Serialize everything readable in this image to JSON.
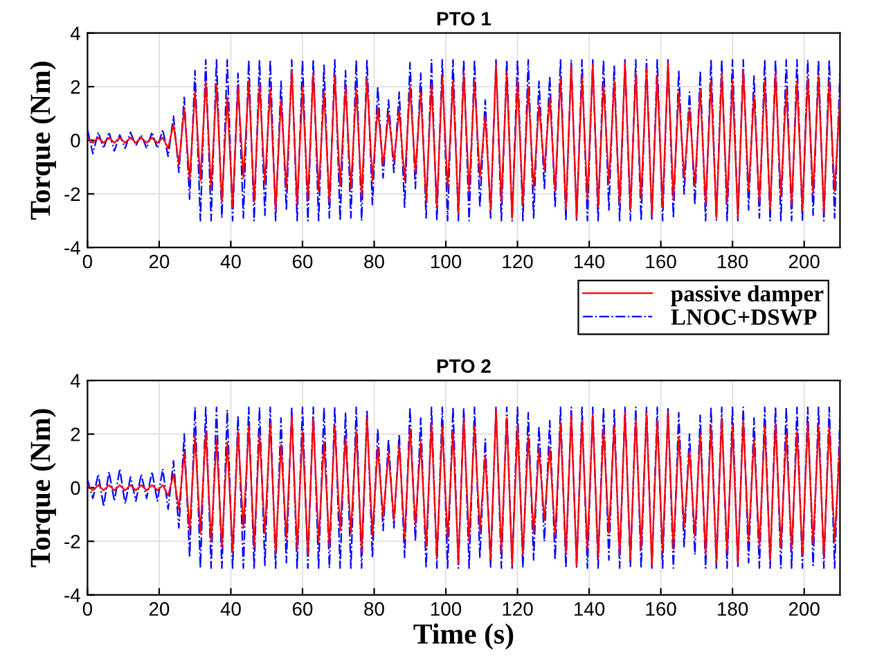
{
  "chart_data": [
    {
      "type": "line",
      "title": "PTO 1",
      "ylabel": "Torque (Nm)",
      "xlim": [
        0,
        210
      ],
      "xticks": [
        0,
        20,
        40,
        60,
        80,
        100,
        120,
        140,
        160,
        180,
        200
      ],
      "ylim": [
        -4,
        4
      ],
      "yticks": [
        -4,
        -2,
        0,
        2,
        4
      ],
      "grid": true,
      "legend": "bottom right",
      "marker": "none",
      "x": [
        0,
        1.5,
        3,
        4.5,
        6,
        7.5,
        9,
        10.5,
        12,
        13.5,
        15,
        16.5,
        18,
        19.5,
        21,
        22.5,
        24,
        25.5,
        27,
        28.5,
        30,
        31.5,
        33,
        34.5,
        36,
        37.5,
        39,
        40.5,
        42,
        43.5,
        45,
        46.5,
        48,
        49.5,
        51,
        52.5,
        54,
        55.5,
        57,
        58.5,
        60,
        61.5,
        63,
        64.5,
        66,
        67.5,
        69,
        70.5,
        72,
        73.5,
        75,
        76.5,
        78,
        79.5,
        81,
        82.5,
        84,
        85.5,
        87,
        88.5,
        90,
        91.5,
        93,
        94.5,
        96,
        97.5,
        99,
        100.5,
        102,
        103.5,
        105,
        106.5,
        108,
        109.5,
        111,
        112.5,
        114,
        115.5,
        117,
        118.5,
        120,
        121.5,
        123,
        124.5,
        126,
        127.5,
        129,
        130.5,
        132,
        133.5,
        135,
        136.5,
        138,
        139.5,
        141,
        142.5,
        144,
        145.5,
        147,
        148.5,
        150,
        151.5,
        153,
        154.5,
        156,
        157.5,
        159,
        160.5,
        162,
        163.5,
        165,
        166.5,
        168,
        169.5,
        171,
        172.5,
        174,
        175.5,
        177,
        178.5,
        180,
        181.5,
        183,
        184.5,
        186,
        187.5,
        189,
        190.5,
        192,
        193.5,
        195,
        196.5,
        198,
        199.5,
        201,
        202.5,
        204,
        205.5,
        207,
        208.5,
        210
      ],
      "series": [
        {
          "name": "passive damper",
          "color": "#ff0000",
          "line_style": "solid",
          "values": [
            0.1,
            -0.1,
            0.1,
            -0.1,
            0.1,
            -0.1,
            0.1,
            -0.1,
            0.1,
            -0.1,
            0.1,
            -0.1,
            0.1,
            -0.1,
            0.1,
            -0.3,
            0.6,
            -0.9,
            1.2,
            -1.5,
            1.8,
            -1.5,
            2.2,
            -1.8,
            2.1,
            -2.3,
            1.6,
            -2.5,
            2,
            -1.4,
            2.2,
            -2.3,
            2.1,
            -1.6,
            1.9,
            -2.6,
            1.5,
            -1.8,
            2.6,
            -2.4,
            2,
            -2.2,
            2.5,
            -1.9,
            1.8,
            -2.3,
            2.4,
            -1.7,
            2,
            -1.8,
            1.9,
            -2.1,
            2.3,
            -1.5,
            1.2,
            -0.9,
            1,
            -0.8,
            1.1,
            -1.5,
            2,
            -1.2,
            1.8,
            -2.3,
            2.1,
            -2.5,
            2.4,
            -1.8,
            2.2,
            -2.7,
            2.5,
            -1.9,
            2.2,
            -1.4,
            0.9,
            -2.6,
            2.8,
            -2.3,
            2.5,
            -2.9,
            2.2,
            -2.4,
            2,
            -1.8,
            1.3,
            -1.1,
            1.6,
            -1.9,
            2.3,
            -2.6,
            2.8,
            -2.9,
            2.4,
            -2.2,
            2.8,
            -2.5,
            2.1,
            -1.6,
            2.2,
            -2.4,
            2.9,
            -2.6,
            2.5,
            -2.2,
            2.7,
            -2.8,
            2.4,
            -2.5,
            2.9,
            -2.2,
            1.8,
            -1.4,
            1.2,
            -1.7,
            1.9,
            -2.4,
            2.2,
            -2.9,
            2.5,
            -2.3,
            2.2,
            -2.9,
            2.6,
            -1.9,
            1.7,
            -2.3,
            2.2,
            -2.6,
            2.5,
            -2.1,
            1.9,
            -2.4,
            2.2,
            -2.6,
            2.3,
            -2,
            2.4,
            -2.7,
            2.2,
            -1.9,
            1.6
          ]
        },
        {
          "name": "LNOC+DSWP",
          "color": "#0000ff",
          "line_style": "dashdot",
          "values": [
            0.4,
            -0.5,
            0.3,
            -0.3,
            0.3,
            -0.4,
            0.2,
            -0.3,
            0.3,
            -0.2,
            0.2,
            -0.3,
            0.3,
            -0.3,
            0.4,
            -0.6,
            0.9,
            -1.2,
            1.6,
            -2.2,
            2.6,
            -3,
            3,
            -3,
            3,
            -2.9,
            3,
            -3,
            2.5,
            -2.9,
            3,
            -3,
            3,
            -2.8,
            3,
            -3,
            2.2,
            -2.6,
            3,
            -3,
            3,
            -3,
            3,
            -3,
            2.8,
            -2.9,
            3,
            -3,
            2.6,
            -2.9,
            3,
            -3,
            3,
            -2.4,
            2,
            -1.4,
            1.5,
            -1.2,
            1.8,
            -2.5,
            2.9,
            -1.8,
            2.5,
            -2.9,
            3,
            -3,
            3,
            -3,
            3,
            -3,
            3,
            -3,
            3,
            -2.5,
            1.5,
            -2.9,
            3,
            -3,
            3,
            -3,
            3,
            -3,
            3,
            -2.9,
            2.2,
            -1.8,
            2.4,
            -2.5,
            3,
            -3,
            3,
            -3,
            3,
            -3,
            3,
            -3,
            3,
            -2.6,
            2.8,
            -3,
            3,
            -3,
            3,
            -3,
            3,
            -3,
            3,
            -3,
            3,
            -2.9,
            2.6,
            -2,
            1.8,
            -2.4,
            2.6,
            -3,
            3,
            -3,
            3,
            -3,
            3,
            -3,
            3,
            -2.6,
            2.4,
            -2.9,
            3,
            -3,
            3,
            -3,
            3,
            -3,
            3,
            -3,
            3,
            -2.8,
            3,
            -3,
            3,
            -2.9,
            2.5
          ]
        }
      ]
    },
    {
      "type": "line",
      "title": "PTO 2",
      "xlabel": "Time (s)",
      "ylabel": "Torque (Nm)",
      "xlim": [
        0,
        210
      ],
      "xticks": [
        0,
        20,
        40,
        60,
        80,
        100,
        120,
        140,
        160,
        180,
        200
      ],
      "ylim": [
        -4,
        4
      ],
      "yticks": [
        -4,
        -2,
        0,
        2,
        4
      ],
      "grid": true,
      "marker": "none",
      "x": [
        0,
        1.5,
        3,
        4.5,
        6,
        7.5,
        9,
        10.5,
        12,
        13.5,
        15,
        16.5,
        18,
        19.5,
        21,
        22.5,
        24,
        25.5,
        27,
        28.5,
        30,
        31.5,
        33,
        34.5,
        36,
        37.5,
        39,
        40.5,
        42,
        43.5,
        45,
        46.5,
        48,
        49.5,
        51,
        52.5,
        54,
        55.5,
        57,
        58.5,
        60,
        61.5,
        63,
        64.5,
        66,
        67.5,
        69,
        70.5,
        72,
        73.5,
        75,
        76.5,
        78,
        79.5,
        81,
        82.5,
        84,
        85.5,
        87,
        88.5,
        90,
        91.5,
        93,
        94.5,
        96,
        97.5,
        99,
        100.5,
        102,
        103.5,
        105,
        106.5,
        108,
        109.5,
        111,
        112.5,
        114,
        115.5,
        117,
        118.5,
        120,
        121.5,
        123,
        124.5,
        126,
        127.5,
        129,
        130.5,
        132,
        133.5,
        135,
        136.5,
        138,
        139.5,
        141,
        142.5,
        144,
        145.5,
        147,
        148.5,
        150,
        151.5,
        153,
        154.5,
        156,
        157.5,
        159,
        160.5,
        162,
        163.5,
        165,
        166.5,
        168,
        169.5,
        171,
        172.5,
        174,
        175.5,
        177,
        178.5,
        180,
        181.5,
        183,
        184.5,
        186,
        187.5,
        189,
        190.5,
        192,
        193.5,
        195,
        196.5,
        198,
        199.5,
        201,
        202.5,
        204,
        205.5,
        207,
        208.5,
        210
      ],
      "series": [
        {
          "color": "#ff0000",
          "line_style": "solid",
          "values": [
            0.1,
            -0.1,
            0.1,
            -0.1,
            0.1,
            -0.1,
            0.1,
            -0.1,
            0.1,
            -0.1,
            0.1,
            -0.1,
            0.1,
            -0.1,
            0.1,
            -0.3,
            0.5,
            -0.8,
            1.3,
            -1.6,
            1.9,
            -1.7,
            2.1,
            -2,
            1.8,
            -2.2,
            1.7,
            -2.4,
            2.1,
            -1.5,
            2.3,
            -2.2,
            2,
            -1.7,
            2.4,
            -2.5,
            1.6,
            -1.9,
            2.7,
            -2.3,
            2.1,
            -2.5,
            2.6,
            -2,
            1.7,
            -2.2,
            2.3,
            -1.6,
            1.9,
            -1.7,
            2.1,
            -2.4,
            2.6,
            -1.8,
            1.5,
            -1.1,
            1.3,
            -1.2,
            1.6,
            -1.9,
            2.2,
            -1.4,
            1.7,
            -2.2,
            2.4,
            -2.6,
            2.3,
            -1.9,
            2.1,
            -2.8,
            2.6,
            -2,
            2.3,
            -1.6,
            1.2,
            -2.7,
            2.9,
            -2.4,
            2.6,
            -2.9,
            2.3,
            -2.5,
            1.9,
            -1.7,
            1.4,
            -1.2,
            1.5,
            -1.8,
            2.4,
            -2.5,
            2.7,
            -2.9,
            2.5,
            -2.3,
            2.7,
            -2.6,
            2.2,
            -1.7,
            2.3,
            -2.5,
            2.8,
            -2.7,
            2.6,
            -2.3,
            2.8,
            -2.9,
            2.5,
            -2.4,
            2.8,
            -2.3,
            1.9,
            -1.5,
            1.4,
            -1.8,
            2,
            -2.5,
            2.3,
            -2.8,
            2.6,
            -2.4,
            2.3,
            -2.8,
            2.5,
            -2,
            1.8,
            -2.2,
            2.3,
            -2.7,
            2.4,
            -2.2,
            2,
            -2.3,
            2.1,
            -2.5,
            2.4,
            -2.1,
            2.3,
            -2.6,
            2.3,
            -2,
            1.7
          ]
        },
        {
          "color": "#0000ff",
          "line_style": "dashdot",
          "values": [
            0.3,
            -0.4,
            0.5,
            -0.7,
            0.6,
            -0.5,
            0.7,
            -0.6,
            0.4,
            -0.5,
            0.5,
            -0.4,
            0.6,
            -0.5,
            0.7,
            -0.8,
            1,
            -1.5,
            2,
            -2.6,
            3,
            -3,
            3,
            -3,
            3,
            -3,
            2.9,
            -3,
            2.7,
            -3,
            3,
            -3,
            3,
            -2.9,
            3,
            -3,
            2.6,
            -2.8,
            3,
            -3,
            3,
            -3,
            3,
            -3,
            3,
            -3,
            3,
            -3,
            2.8,
            -3,
            3,
            -3,
            2.9,
            -2.6,
            2.2,
            -1.6,
            1.8,
            -1.5,
            2,
            -2.6,
            3,
            -2,
            2.6,
            -3,
            3,
            -3,
            3,
            -3,
            3,
            -3,
            3,
            -3,
            3,
            -2.6,
            1.8,
            -3,
            3,
            -3,
            3,
            -3,
            3,
            -3,
            2.8,
            -2.7,
            2.3,
            -2,
            2.5,
            -2.7,
            3,
            -3,
            3,
            -3,
            3,
            -3,
            3,
            -3,
            3,
            -2.7,
            2.9,
            -3,
            3,
            -3,
            3,
            -3,
            3,
            -3,
            3,
            -3,
            3,
            -3,
            2.8,
            -2.2,
            2,
            -2.5,
            2.7,
            -3,
            3,
            -3,
            3,
            -3,
            3,
            -3,
            3,
            -2.8,
            2.6,
            -3,
            3,
            -3,
            3,
            -3,
            3,
            -3,
            3,
            -3,
            3,
            -2.9,
            3,
            -3,
            3,
            -3,
            2.6
          ]
        }
      ]
    }
  ]
}
